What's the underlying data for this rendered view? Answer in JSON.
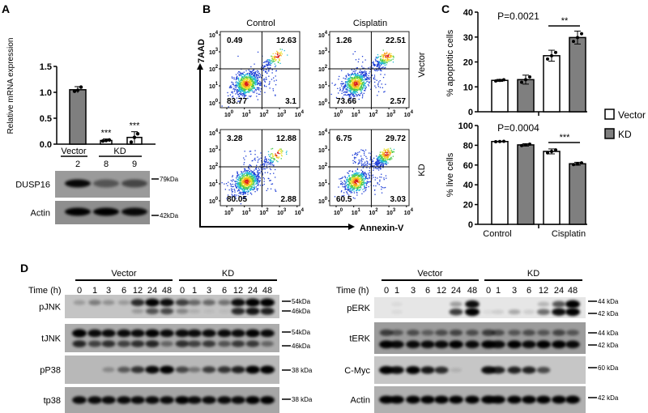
{
  "panel_labels": {
    "A": "A",
    "B": "B",
    "C": "C",
    "D": "D"
  },
  "panel_A": {
    "group_labels": [
      "Vector",
      "KD"
    ],
    "lane_numbers": [
      "2",
      "8",
      "9"
    ],
    "blots": [
      {
        "name": "DUSP16",
        "marker": "79kDa",
        "bg": "#9a9a9a",
        "intensity": [
          0.95,
          0.45,
          0.55
        ]
      },
      {
        "name": "Actin",
        "marker": "42kDa",
        "bg": "#8e8e8e",
        "intensity": [
          1,
          1,
          0.95
        ]
      }
    ]
  },
  "panel_B": {
    "col_titles": [
      "Control",
      "Cisplatin"
    ],
    "row_titles": [
      "Vector",
      "KD"
    ],
    "y_axis_label": "7AAD",
    "x_axis_label": "Annexin-V",
    "tick_base": "10",
    "tick_exponents": [
      "0",
      "1",
      "2",
      "3",
      "4"
    ]
  },
  "panel_C": {
    "legend": [
      {
        "label": "Vector",
        "color": "#ffffff"
      },
      {
        "label": "KD",
        "color": "#7f7f7f"
      }
    ],
    "x_categories": [
      "Control",
      "Cisplatin"
    ]
  },
  "chart_data": [
    {
      "type": "bar",
      "panel": "A",
      "ylabel": "Relative mRNA expression",
      "categories": [
        "Vector 2",
        "KD 8",
        "KD 9"
      ],
      "values": [
        1.05,
        0.07,
        0.13
      ],
      "errors": [
        0.06,
        0.03,
        0.11
      ],
      "points": [
        [
          1.02,
          1.04,
          1.1
        ],
        [
          0.06,
          0.07,
          0.08
        ],
        [
          0.04,
          0.13,
          0.2
        ]
      ],
      "significance": [
        "",
        "***",
        "***"
      ],
      "colors": [
        "#7f7f7f",
        "#ffffff",
        "#ffffff"
      ],
      "ylim": [
        0,
        1.5
      ],
      "yticks": [
        "0.0",
        "0.5",
        "1.0",
        "1.5"
      ]
    },
    {
      "type": "scatter",
      "panel": "B",
      "xlabel": "Annexin-V",
      "ylabel": "7AAD",
      "scale": "log",
      "xlim": [
        1,
        10000
      ],
      "ylim": [
        1,
        10000
      ],
      "plots": [
        {
          "treatment": "Control",
          "line": "Vector",
          "quadrants": {
            "UL": "0.49",
            "UR": "12.63",
            "LL": "83.77",
            "LR": "3.1"
          }
        },
        {
          "treatment": "Cisplatin",
          "line": "Vector",
          "quadrants": {
            "UL": "1.26",
            "UR": "22.51",
            "LL": "73.66",
            "LR": "2.57"
          }
        },
        {
          "treatment": "Control",
          "line": "KD",
          "quadrants": {
            "UL": "3.28",
            "UR": "12.88",
            "LL": "80.05",
            "LR": "2.88"
          }
        },
        {
          "treatment": "Cisplatin",
          "line": "KD",
          "quadrants": {
            "UL": "6.75",
            "UR": "29.72",
            "LL": "60.5",
            "LR": "3.03"
          }
        }
      ]
    },
    {
      "type": "bar",
      "panel": "C-top",
      "ylabel": "% apoptotic cells",
      "categories": [
        "Control",
        "Cisplatin"
      ],
      "series": [
        {
          "name": "Vector",
          "values": [
            12.6,
            22.5
          ],
          "errors": [
            0.4,
            2.2
          ]
        },
        {
          "name": "KD",
          "values": [
            12.9,
            29.8
          ],
          "errors": [
            1.8,
            2.6
          ]
        }
      ],
      "annotation": "P=0.0021",
      "significance": "**",
      "ylim": [
        0,
        40
      ],
      "yticks": [
        "0",
        "10",
        "20",
        "30",
        "40"
      ]
    },
    {
      "type": "bar",
      "panel": "C-bottom",
      "ylabel": "% live cells",
      "categories": [
        "Control",
        "Cisplatin"
      ],
      "series": [
        {
          "name": "Vector",
          "values": [
            83.8,
            73.8
          ],
          "errors": [
            0.3,
            2.5
          ]
        },
        {
          "name": "KD",
          "values": [
            80.4,
            61.3
          ],
          "errors": [
            1.2,
            1.5
          ]
        }
      ],
      "annotation": "P=0.0004",
      "significance": "***",
      "ylim": [
        0,
        100
      ],
      "yticks": [
        "0",
        "20",
        "40",
        "60",
        "80",
        "100"
      ]
    }
  ],
  "panel_D": {
    "time_label": "Time (h)",
    "groups": [
      "Vector",
      "KD"
    ],
    "times": [
      "0",
      "1",
      "3",
      "6",
      "12",
      "24",
      "48",
      "0",
      "1",
      "3",
      "6",
      "12",
      "24",
      "48"
    ],
    "left": [
      {
        "name": "pJNK",
        "bg": "#c4c4c4",
        "markers": [
          "54kDa",
          "46kDa"
        ],
        "bands": [
          [
            0.2,
            0.35,
            0.25,
            0.2,
            0.75,
            0.95,
            0.9,
            0.65,
            0.45,
            0.45,
            0.4,
            0.9,
            1,
            1
          ],
          [
            0,
            0,
            0,
            0,
            0.2,
            0.55,
            0.6,
            0.3,
            0.1,
            0.05,
            0.05,
            0.75,
            0.85,
            0.8
          ]
        ]
      },
      {
        "name": "tJNK",
        "bg": "#acacac",
        "markers": [
          "54kDa",
          "46kDa"
        ],
        "bands": [
          [
            1,
            0.9,
            0.9,
            0.9,
            0.9,
            0.95,
            0.9,
            0.9,
            0.9,
            0.9,
            0.9,
            0.9,
            0.95,
            0.9
          ],
          [
            0.75,
            0.6,
            0.7,
            0.6,
            0.7,
            0.75,
            0.4,
            0.7,
            0.6,
            0.65,
            0.5,
            0.65,
            0.65,
            0.4
          ]
        ]
      },
      {
        "name": "pP38",
        "bg": "#b8b8b8",
        "markers": [
          "38 kDa"
        ],
        "bands": [
          [
            0,
            0,
            0.25,
            0.5,
            0.7,
            0.92,
            0.97,
            0.6,
            0.35,
            0.65,
            0.7,
            0.8,
            0.95,
            1
          ]
        ]
      },
      {
        "name": "tp38",
        "bg": "#a6a6a6",
        "markers": [
          "38 kDa"
        ],
        "bands": [
          [
            0.9,
            0.9,
            0.9,
            0.9,
            0.9,
            0.9,
            0.9,
            0.95,
            0.9,
            0.9,
            0.9,
            0.9,
            0.95,
            0.95
          ]
        ]
      }
    ],
    "right": [
      {
        "name": "pERK",
        "bg": "#e6e6e6",
        "markers": [
          "44 kDa",
          "42 kDa"
        ],
        "bands": [
          [
            0,
            0.05,
            0,
            0,
            0,
            0.3,
            0.9,
            0,
            0,
            0,
            0,
            0.2,
            0.6,
            1
          ],
          [
            0,
            0.05,
            0,
            0,
            0,
            0.7,
            1,
            0.05,
            0.1,
            0.25,
            0.1,
            0.5,
            0.9,
            1
          ]
        ]
      },
      {
        "name": "tERK",
        "bg": "#9c9c9c",
        "markers": [
          "44 kDa",
          "42 kDa"
        ],
        "bands": [
          [
            0.6,
            0.45,
            0.5,
            0.4,
            0.5,
            0.55,
            0.5,
            0.6,
            0.5,
            0.45,
            0.5,
            0.45,
            0.55,
            0.45
          ],
          [
            0.95,
            0.9,
            0.9,
            0.9,
            0.9,
            0.95,
            0.9,
            0.95,
            0.9,
            0.95,
            0.9,
            0.95,
            0.95,
            0.9
          ]
        ]
      },
      {
        "name": "C-Myc",
        "bg": "#c6c6c6",
        "markers": [
          "60 kDa"
        ],
        "bands": [
          [
            1,
            0.9,
            0.95,
            0.85,
            0.75,
            0.1,
            0,
            0.9,
            0.8,
            0.8,
            0.8,
            0.6,
            0,
            0
          ]
        ]
      },
      {
        "name": "Actin",
        "bg": "#b0b0b0",
        "markers": [
          "42 kDa"
        ],
        "bands": [
          [
            0.95,
            0.95,
            0.95,
            0.95,
            0.95,
            0.95,
            0.95,
            1,
            0.95,
            0.95,
            0.95,
            0.95,
            0.95,
            1
          ]
        ]
      }
    ]
  }
}
